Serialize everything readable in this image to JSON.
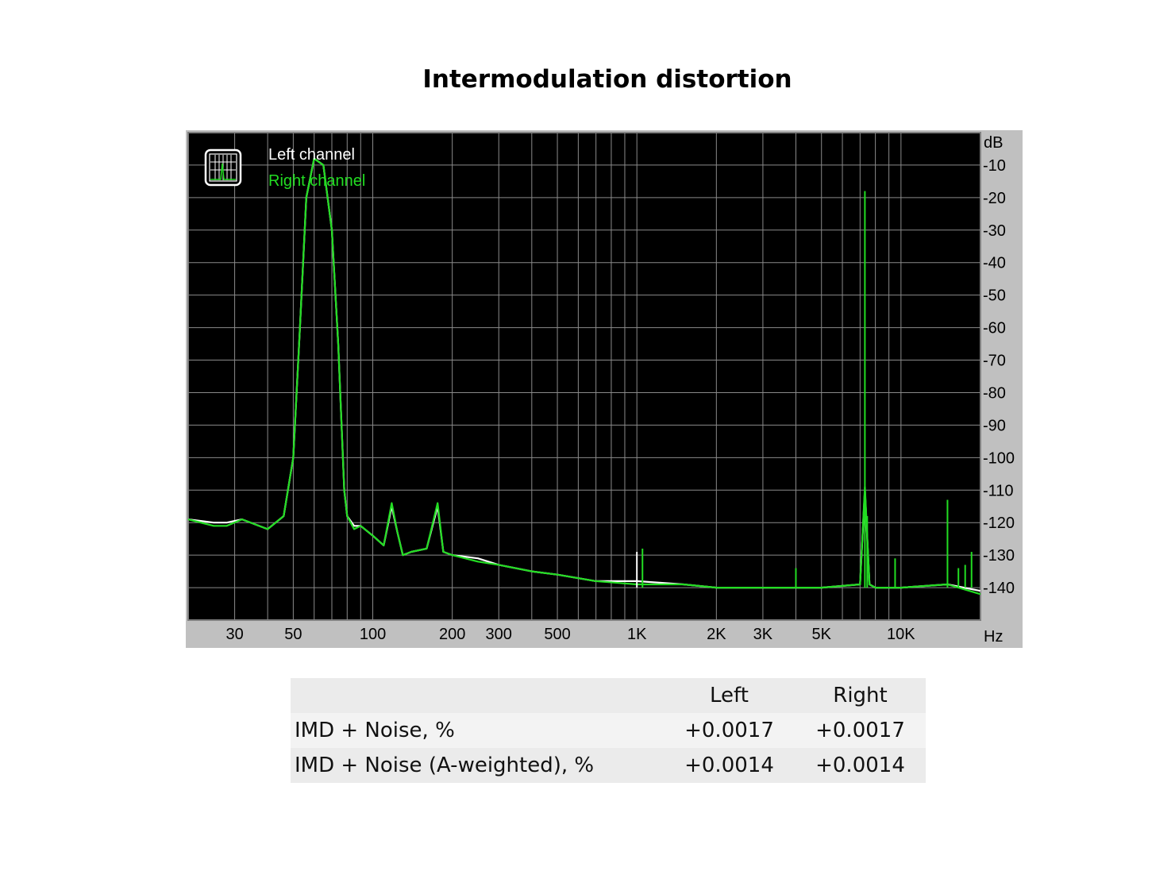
{
  "title": "Intermodulation distortion",
  "chart_data": {
    "type": "line",
    "title": "Intermodulation distortion",
    "xscale": "log",
    "xlim": [
      20,
      20000
    ],
    "ylim": [
      -150,
      0
    ],
    "x_unit": "Hz",
    "y_unit": "dB",
    "x_ticks": [
      {
        "value": 30,
        "label": "30"
      },
      {
        "value": 50,
        "label": "50"
      },
      {
        "value": 100,
        "label": "100"
      },
      {
        "value": 200,
        "label": "200"
      },
      {
        "value": 300,
        "label": "300"
      },
      {
        "value": 500,
        "label": "500"
      },
      {
        "value": 1000,
        "label": "1K"
      },
      {
        "value": 2000,
        "label": "2K"
      },
      {
        "value": 3000,
        "label": "3K"
      },
      {
        "value": 5000,
        "label": "5K"
      },
      {
        "value": 10000,
        "label": "10K"
      }
    ],
    "y_ticks": [
      -10,
      -20,
      -30,
      -40,
      -50,
      -60,
      -70,
      -80,
      -90,
      -100,
      -110,
      -120,
      -130,
      -140
    ],
    "grid": true,
    "background": "#000000",
    "legend_position": "top-left",
    "series": [
      {
        "name": "Left channel",
        "color": "#ffffff",
        "x": [
          20,
          25,
          28,
          32,
          40,
          46,
          50,
          53,
          56,
          60,
          65,
          70,
          74,
          78,
          80,
          85,
          90,
          100,
          110,
          118,
          124,
          130,
          140,
          160,
          176,
          185,
          200,
          250,
          300,
          400,
          500,
          700,
          1000,
          1500,
          2000,
          3000,
          5000,
          7000,
          7300,
          7600,
          8000,
          10000,
          15000,
          20000
        ],
        "y": [
          -119,
          -120,
          -120,
          -119,
          -122,
          -118,
          -100,
          -60,
          -20,
          -8,
          -10,
          -30,
          -65,
          -110,
          -118,
          -121,
          -121,
          -124,
          -127,
          -115,
          -123,
          -130,
          -129,
          -128,
          -115,
          -129,
          -130,
          -131,
          -133,
          -135,
          -136,
          -138,
          -138,
          -139,
          -140,
          -140,
          -140,
          -139,
          -110,
          -139,
          -140,
          -140,
          -139,
          -141
        ]
      },
      {
        "name": "Right channel",
        "color": "#22dd22",
        "x": [
          20,
          25,
          28,
          32,
          40,
          46,
          50,
          53,
          56,
          60,
          65,
          70,
          74,
          78,
          80,
          85,
          90,
          100,
          110,
          118,
          124,
          130,
          140,
          160,
          176,
          185,
          200,
          250,
          300,
          400,
          500,
          700,
          1000,
          1500,
          2000,
          3000,
          5000,
          7000,
          7300,
          7600,
          8000,
          10000,
          15000,
          20000
        ],
        "y": [
          -119,
          -121,
          -121,
          -119,
          -122,
          -118,
          -100,
          -60,
          -20,
          -8,
          -10,
          -30,
          -65,
          -110,
          -118,
          -122,
          -121,
          -124,
          -127,
          -114,
          -123,
          -130,
          -129,
          -128,
          -114,
          -129,
          -130,
          -132,
          -133,
          -135,
          -136,
          -138,
          -139,
          -139,
          -140,
          -140,
          -140,
          -139,
          -109,
          -139,
          -140,
          -140,
          -139,
          -142
        ]
      }
    ],
    "spurs": [
      {
        "series": "Right channel",
        "x": 7300,
        "y": -18
      },
      {
        "series": "Right channel",
        "x": 7450,
        "y": -118
      },
      {
        "series": "Right channel",
        "x": 15000,
        "y": -113
      },
      {
        "series": "Right channel",
        "x": 9500,
        "y": -131
      },
      {
        "series": "Right channel",
        "x": 1050,
        "y": -128
      },
      {
        "series": "Left channel",
        "x": 1000,
        "y": -129
      },
      {
        "series": "Right channel",
        "x": 4000,
        "y": -134
      },
      {
        "series": "Right channel",
        "x": 18500,
        "y": -129
      },
      {
        "series": "Right channel",
        "x": 17500,
        "y": -133
      },
      {
        "series": "Right channel",
        "x": 16500,
        "y": -134
      }
    ]
  },
  "table": {
    "headers": [
      "",
      "Left",
      "Right"
    ],
    "rows": [
      {
        "label": "IMD + Noise, %",
        "left": "+0.0017",
        "right": "+0.0017"
      },
      {
        "label": "IMD + Noise (A-weighted), %",
        "left": "+0.0014",
        "right": "+0.0014"
      }
    ]
  }
}
